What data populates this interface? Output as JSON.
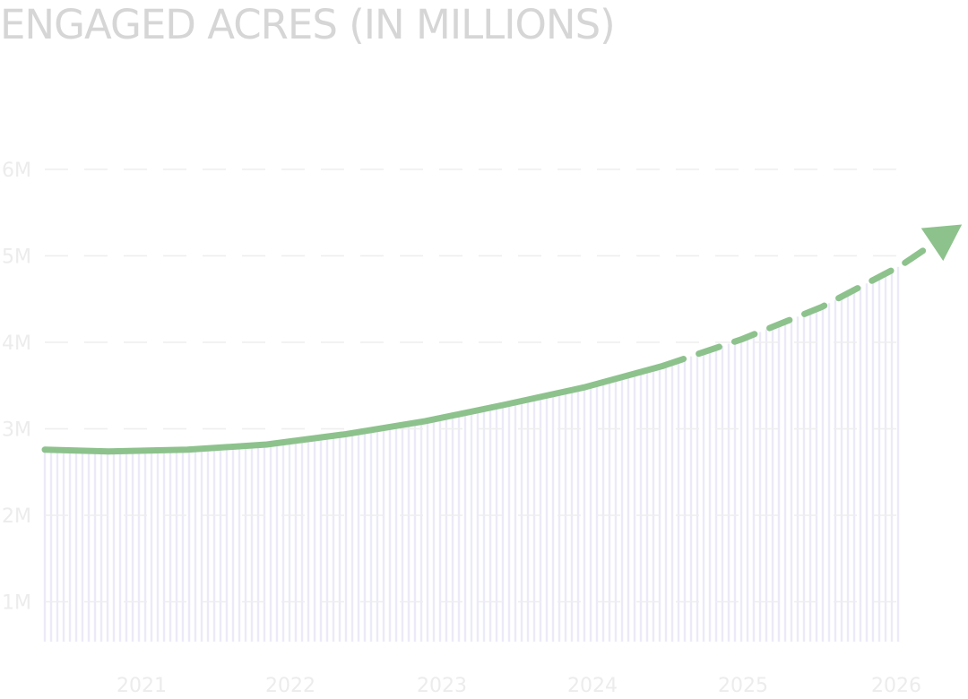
{
  "chart_data": {
    "type": "line",
    "title": "ENGAGED ACRES (IN MILLIONS)",
    "xlabel": "",
    "ylabel": "",
    "x_ticks": [
      "2021",
      "2022",
      "2023",
      "2024",
      "2025",
      "2026"
    ],
    "y_ticks": [
      "1M",
      "2M",
      "3M",
      "4M",
      "5M",
      "6M"
    ],
    "ylim": [
      0,
      6
    ],
    "xlim": [
      2020.6,
      2026.3
    ],
    "grid": true,
    "series": [
      {
        "style": "solid",
        "color": "#8dc28d",
        "x": [
          2020.6,
          2021.0,
          2021.5,
          2022.0,
          2022.5,
          2023.0,
          2023.5,
          2024.0,
          2024.5
        ],
        "y": [
          2.8,
          2.78,
          2.8,
          2.86,
          2.98,
          3.13,
          3.32,
          3.52,
          3.77
        ]
      },
      {
        "style": "dashed",
        "color": "#8dc28d",
        "x": [
          2024.5,
          2025.0,
          2025.5,
          2026.0,
          2026.3
        ],
        "y": [
          3.77,
          4.08,
          4.45,
          4.93,
          5.3
        ]
      }
    ],
    "colors": {
      "line": "#8dc28d",
      "bars": "#eceaf8",
      "grid": "#eeeeee",
      "labels": "#ececec",
      "title": "#d6d6d6"
    }
  }
}
